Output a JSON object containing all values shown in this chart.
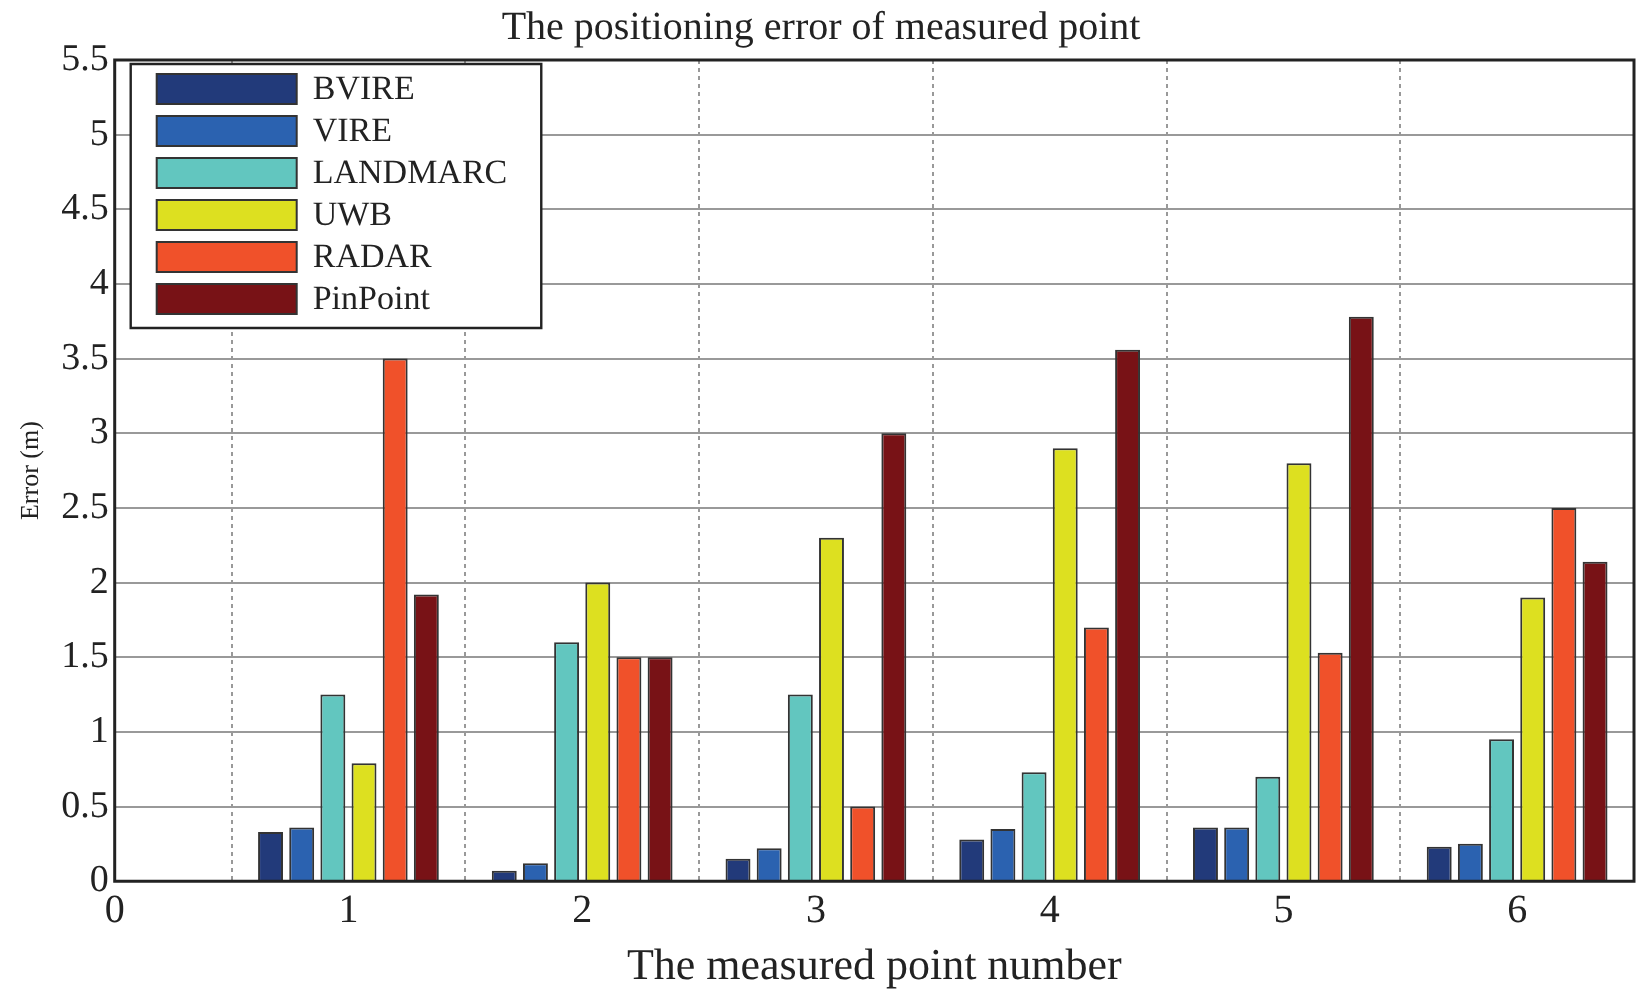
{
  "chart_data": {
    "type": "bar",
    "title": "The positioning error of measured point",
    "xlabel": "The measured point number",
    "ylabel": "Error (m)",
    "x": [
      1,
      2,
      3,
      4,
      5,
      6
    ],
    "series": [
      {
        "name": "BVIRE",
        "color": "#223a7a",
        "values": [
          0.33,
          0.07,
          0.15,
          0.28,
          0.36,
          0.23
        ]
      },
      {
        "name": "VIRE",
        "color": "#2b62b0",
        "values": [
          0.36,
          0.12,
          0.22,
          0.35,
          0.36,
          0.25
        ]
      },
      {
        "name": "LANDMARC",
        "color": "#62c6bf",
        "values": [
          1.25,
          1.6,
          1.25,
          0.73,
          0.7,
          0.95
        ]
      },
      {
        "name": "UWB",
        "color": "#dde020",
        "values": [
          0.79,
          2.0,
          2.3,
          2.9,
          2.8,
          1.9
        ]
      },
      {
        "name": "RADAR",
        "color": "#f0512a",
        "values": [
          3.5,
          1.5,
          0.5,
          1.7,
          1.53,
          2.5
        ]
      },
      {
        "name": "PinPoint",
        "color": "#781216",
        "values": [
          1.92,
          1.5,
          3.0,
          3.56,
          3.78,
          2.14
        ]
      }
    ],
    "xlim": [
      0,
      6.5
    ],
    "xticks": [
      0,
      1,
      2,
      3,
      4,
      5,
      6
    ],
    "ylim": [
      0,
      5.5
    ],
    "yticks": [
      0,
      0.5,
      1,
      1.5,
      2,
      2.5,
      3,
      3.5,
      4,
      4.5,
      5,
      5.5
    ],
    "grid": true,
    "legend": "top left"
  }
}
